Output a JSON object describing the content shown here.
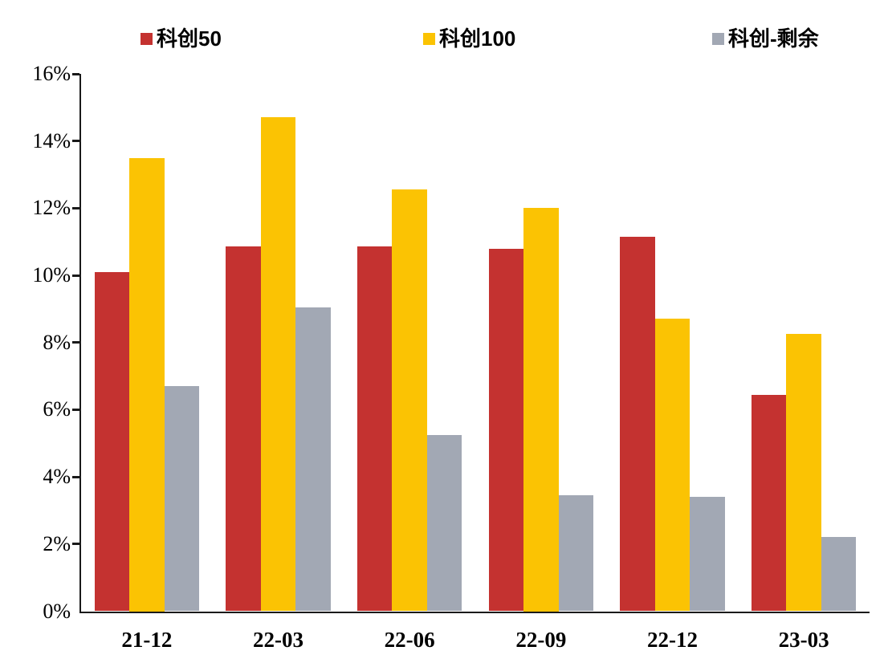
{
  "chart_data": {
    "type": "bar",
    "title": "",
    "xlabel": "",
    "ylabel": "",
    "categories": [
      "21-12",
      "22-03",
      "22-06",
      "22-09",
      "22-12",
      "23-03"
    ],
    "series": [
      {
        "name": "科创50",
        "color": "#C43230",
        "values": [
          10.1,
          10.85,
          10.85,
          10.8,
          11.15,
          6.45
        ]
      },
      {
        "name": "科创100",
        "color": "#FBC303",
        "values": [
          13.5,
          14.7,
          12.55,
          12.0,
          8.7,
          8.25
        ]
      },
      {
        "name": "科创-剩余",
        "color": "#A2A8B4",
        "values": [
          6.7,
          9.05,
          5.25,
          3.45,
          3.4,
          2.2
        ]
      }
    ],
    "ylim": [
      0,
      16
    ],
    "ystep": 2,
    "ytick_labels": [
      "0%",
      "2%",
      "4%",
      "6%",
      "8%",
      "10%",
      "12%",
      "14%",
      "16%"
    ],
    "grid": false,
    "legend_position": "top",
    "axis_color": "#1a1a1a",
    "text_color": "#000000"
  }
}
